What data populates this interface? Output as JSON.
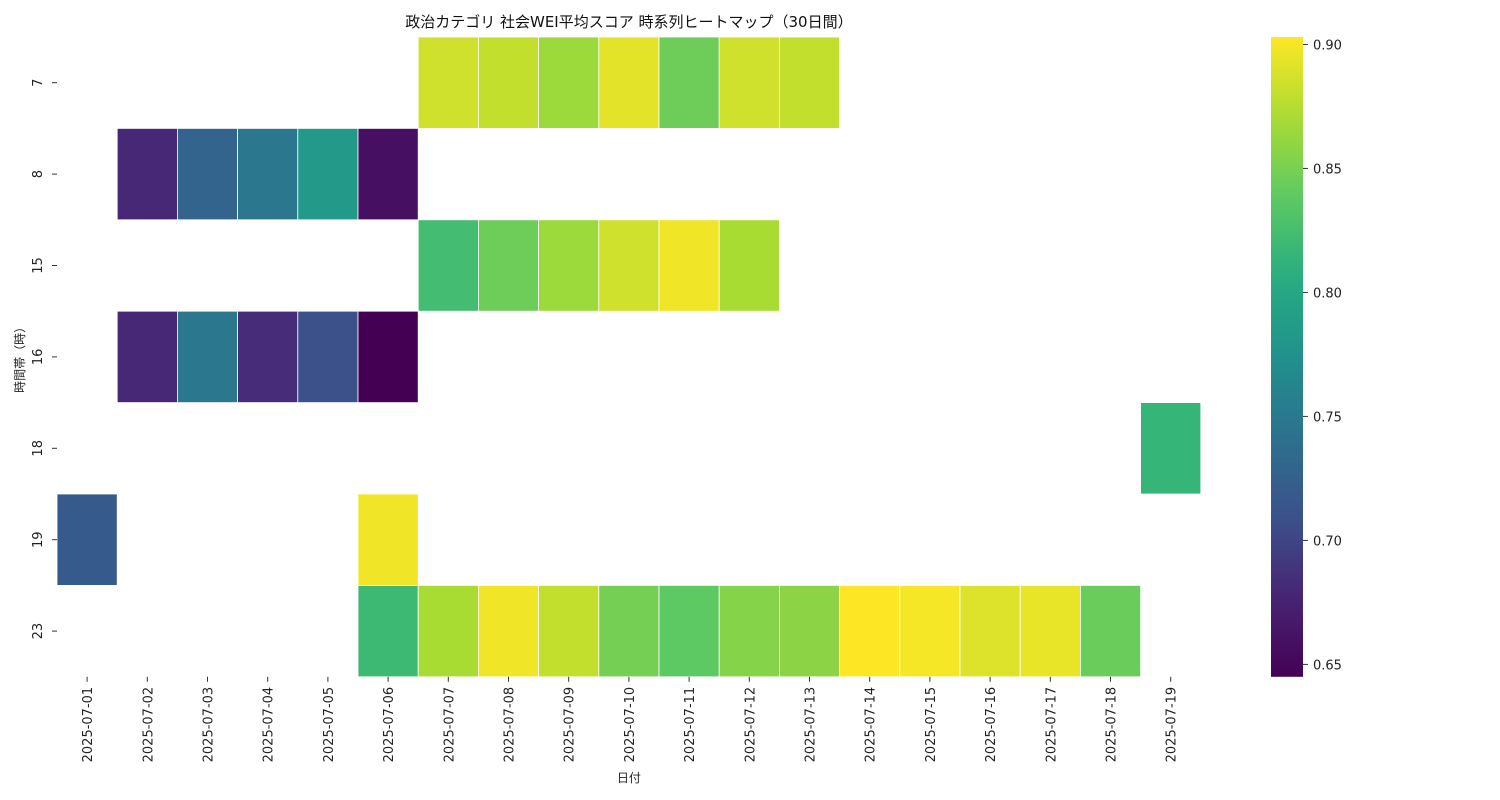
{
  "chart_data": {
    "type": "heatmap",
    "title": "政治カテゴリ 社会WEI平均スコア 時系列ヒートマップ（30日間）",
    "xlabel": "日付",
    "ylabel": "時間帯（時）",
    "x_categories": [
      "2025-07-01",
      "2025-07-02",
      "2025-07-03",
      "2025-07-04",
      "2025-07-05",
      "2025-07-06",
      "2025-07-07",
      "2025-07-08",
      "2025-07-09",
      "2025-07-10",
      "2025-07-11",
      "2025-07-12",
      "2025-07-13",
      "2025-07-14",
      "2025-07-15",
      "2025-07-16",
      "2025-07-17",
      "2025-07-18",
      "2025-07-19"
    ],
    "y_categories": [
      "7",
      "8",
      "15",
      "16",
      "18",
      "19",
      "23"
    ],
    "values": [
      [
        null,
        null,
        null,
        null,
        null,
        null,
        0.885,
        0.88,
        0.865,
        0.893,
        0.845,
        0.885,
        0.88,
        null,
        null,
        null,
        null,
        null,
        null
      ],
      [
        null,
        0.68,
        0.728,
        0.748,
        0.783,
        0.658,
        null,
        null,
        null,
        null,
        null,
        null,
        null,
        null,
        null,
        null,
        null,
        null,
        null
      ],
      [
        null,
        null,
        null,
        null,
        null,
        null,
        0.823,
        0.845,
        0.865,
        0.885,
        0.898,
        0.87,
        null,
        null,
        null,
        null,
        null,
        null,
        null
      ],
      [
        null,
        0.68,
        0.748,
        0.683,
        0.708,
        0.645,
        null,
        null,
        null,
        null,
        null,
        null,
        null,
        null,
        null,
        null,
        null,
        null,
        null
      ],
      [
        null,
        null,
        null,
        null,
        null,
        null,
        null,
        null,
        null,
        null,
        null,
        null,
        null,
        null,
        null,
        null,
        null,
        null,
        0.815
      ],
      [
        0.718,
        null,
        null,
        null,
        null,
        0.898,
        null,
        null,
        null,
        null,
        null,
        null,
        null,
        null,
        null,
        null,
        null,
        null,
        null
      ],
      [
        null,
        null,
        null,
        null,
        null,
        0.82,
        0.87,
        0.898,
        0.88,
        0.848,
        0.838,
        0.855,
        0.858,
        0.903,
        0.9,
        0.89,
        0.895,
        0.843,
        null
      ]
    ],
    "colorbar": {
      "min": 0.645,
      "max": 0.903,
      "ticks": [
        "0.65",
        "0.70",
        "0.75",
        "0.80",
        "0.85",
        "0.90"
      ],
      "colormap": "viridis"
    },
    "grid": false,
    "legend": "colorbar-right"
  }
}
